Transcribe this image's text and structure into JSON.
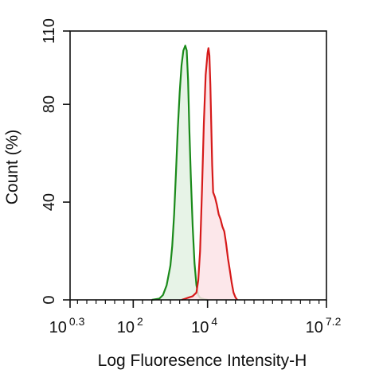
{
  "chart_data": {
    "type": "area",
    "title": "",
    "xlabel": "Log Fluoresence Intensity-H",
    "ylabel": "Count  (%)",
    "x_scale": "log10",
    "xlim": [
      1.995,
      15849000
    ],
    "ylim": [
      0,
      110
    ],
    "y_ticks": [
      0,
      40,
      80,
      110
    ],
    "y_tick_labels": [
      "0",
      "40",
      "80",
      "110"
    ],
    "x_ticks": [
      {
        "value": 1.995,
        "base": "10",
        "exp": "0.3"
      },
      {
        "value": 100,
        "base": "10",
        "exp": "2"
      },
      {
        "value": 10000,
        "base": "10",
        "exp": "4"
      },
      {
        "value": 15849000,
        "base": "10",
        "exp": "7.2"
      }
    ],
    "grid": false,
    "legend": "none",
    "series": [
      {
        "color": "#1a8a1a",
        "fill": "#e3f1e3",
        "points": [
          [
            316,
            0
          ],
          [
            501,
            0.5
          ],
          [
            631,
            2
          ],
          [
            794,
            6
          ],
          [
            1000,
            14
          ],
          [
            1122,
            22
          ],
          [
            1259,
            35
          ],
          [
            1413,
            52
          ],
          [
            1585,
            70
          ],
          [
            1778,
            85
          ],
          [
            1995,
            96
          ],
          [
            2239,
            102
          ],
          [
            2512,
            104
          ],
          [
            2754,
            102
          ],
          [
            2985,
            90
          ],
          [
            3236,
            70
          ],
          [
            3548,
            50
          ],
          [
            3981,
            30
          ],
          [
            4467,
            15
          ],
          [
            5012,
            6
          ],
          [
            5623,
            2
          ],
          [
            6310,
            0.8
          ],
          [
            7943,
            0.3
          ],
          [
            10000,
            0
          ]
        ]
      },
      {
        "color": "#d61a1a",
        "fill": "#fbe3e6",
        "points": [
          [
            1995,
            0
          ],
          [
            2512,
            0.5
          ],
          [
            3162,
            1
          ],
          [
            3981,
            1.5
          ],
          [
            5012,
            3
          ],
          [
            5623,
            8
          ],
          [
            6310,
            20
          ],
          [
            7079,
            45
          ],
          [
            7943,
            72
          ],
          [
            8913,
            92
          ],
          [
            10000,
            101
          ],
          [
            10593,
            103
          ],
          [
            11220,
            100
          ],
          [
            11885,
            88
          ],
          [
            12589,
            72
          ],
          [
            13335,
            55
          ],
          [
            14125,
            44
          ],
          [
            15849,
            42
          ],
          [
            17783,
            39
          ],
          [
            19953,
            35
          ],
          [
            22387,
            33
          ],
          [
            25119,
            30
          ],
          [
            28184,
            28
          ],
          [
            31623,
            23
          ],
          [
            35481,
            17
          ],
          [
            39811,
            12
          ],
          [
            44668,
            7
          ],
          [
            50119,
            3
          ],
          [
            56234,
            1
          ],
          [
            63096,
            0
          ]
        ]
      }
    ]
  }
}
